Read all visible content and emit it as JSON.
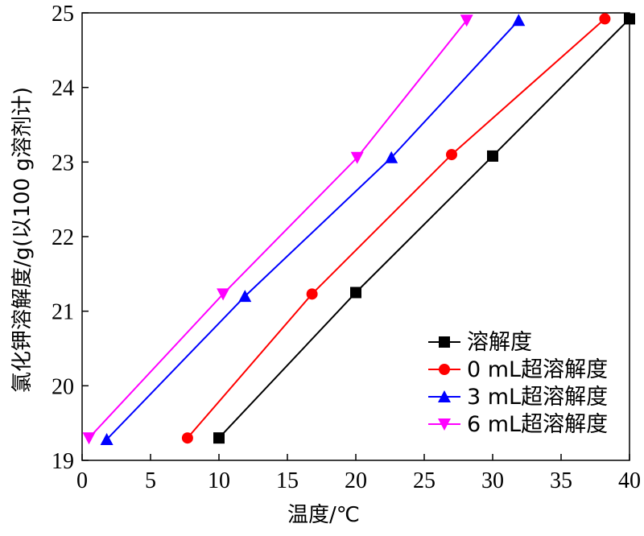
{
  "chart_data": {
    "type": "line",
    "xlabel": "温度/℃",
    "ylabel": "氯化钾溶解度/g(以100 g溶剂计)",
    "xlim": [
      0,
      40
    ],
    "ylim": [
      19,
      25
    ],
    "xticks": [
      0,
      5,
      10,
      15,
      20,
      25,
      30,
      35,
      40
    ],
    "yticks": [
      19,
      20,
      21,
      22,
      23,
      24,
      25
    ],
    "grid": false,
    "legend_position": "bottom-right",
    "series": [
      {
        "name": "溶解度",
        "color": "#000000",
        "marker": "square",
        "points": [
          [
            10,
            19.3
          ],
          [
            20,
            21.25
          ],
          [
            30,
            23.08
          ],
          [
            40,
            24.92
          ]
        ]
      },
      {
        "name": "0 mL超溶解度",
        "color": "#ff0000",
        "marker": "circle",
        "points": [
          [
            7.7,
            19.3
          ],
          [
            16.8,
            21.23
          ],
          [
            27,
            23.1
          ],
          [
            38.2,
            24.92
          ]
        ]
      },
      {
        "name": "3 mL超溶解度",
        "color": "#0000ff",
        "marker": "triangle-up",
        "points": [
          [
            1.8,
            19.28
          ],
          [
            11.9,
            21.2
          ],
          [
            22.6,
            23.06
          ],
          [
            31.9,
            24.9
          ]
        ]
      },
      {
        "name": "6 mL超溶解度",
        "color": "#ff00ff",
        "marker": "triangle-down",
        "points": [
          [
            0.5,
            19.3
          ],
          [
            10.3,
            21.23
          ],
          [
            20.1,
            23.06
          ],
          [
            28.1,
            24.9
          ]
        ]
      }
    ]
  }
}
